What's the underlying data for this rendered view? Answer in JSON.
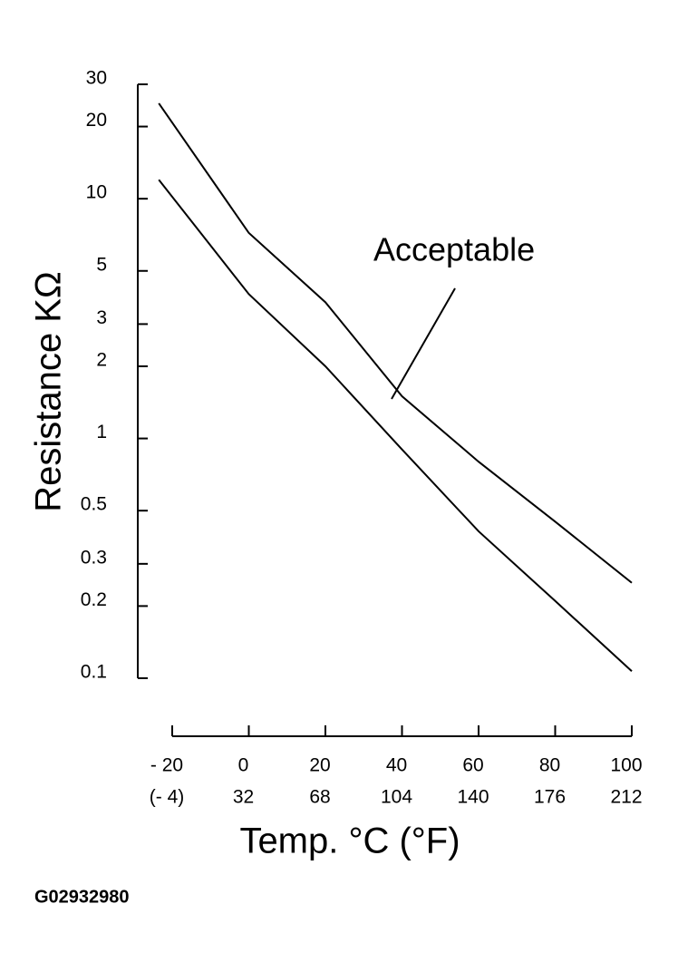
{
  "chart_data": {
    "type": "line",
    "ylabel": "Resistance KΩ",
    "xlabel": "Temp. °C (°F)",
    "annotation": "Acceptable",
    "figure_id": "G02932980",
    "log_y": true,
    "ylim": [
      0.1,
      30
    ],
    "yticks": [
      0.1,
      0.2,
      0.3,
      0.5,
      1,
      2,
      3,
      5,
      10,
      20,
      30
    ],
    "xlim": [
      -20,
      100
    ],
    "xticks": [
      {
        "value": -20,
        "label": "- 20"
      },
      0,
      20,
      40,
      60,
      80,
      100
    ],
    "xtick_labels_f": [
      "(- 4)",
      "32",
      "68",
      "104",
      "140",
      "176",
      "212"
    ],
    "x": [
      -23.5,
      0,
      20,
      40,
      60,
      80,
      100
    ],
    "series": [
      {
        "color": "#000000",
        "values": [
          25,
          7.2,
          3.7,
          1.5,
          0.8,
          0.45,
          0.25
        ]
      },
      {
        "color": "#000000",
        "values": [
          12,
          4.0,
          2.0,
          0.9,
          0.41,
          0.21,
          0.107
        ]
      }
    ]
  }
}
